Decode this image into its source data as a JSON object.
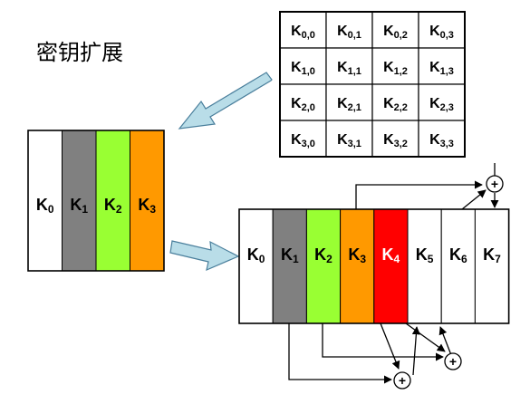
{
  "title": "密钥扩展",
  "matrix": [
    [
      [
        "K",
        "0,0"
      ],
      [
        "K",
        "0,1"
      ],
      [
        "K",
        "0,2"
      ],
      [
        "K",
        "0,3"
      ]
    ],
    [
      [
        "K",
        "1,0"
      ],
      [
        "K",
        "1,1"
      ],
      [
        "K",
        "1,2"
      ],
      [
        "K",
        "1,3"
      ]
    ],
    [
      [
        "K",
        "2,0"
      ],
      [
        "K",
        "2,1"
      ],
      [
        "K",
        "2,2"
      ],
      [
        "K",
        "2,3"
      ]
    ],
    [
      [
        "K",
        "3,0"
      ],
      [
        "K",
        "3,1"
      ],
      [
        "K",
        "3,2"
      ],
      [
        "K",
        "3,3"
      ]
    ]
  ],
  "key_words": [
    {
      "base": "K",
      "sub": "0",
      "color": "#ffffff",
      "text_color": "#000000"
    },
    {
      "base": "K",
      "sub": "1",
      "color": "#808080",
      "text_color": "#000000"
    },
    {
      "base": "K",
      "sub": "2",
      "color": "#99ff33",
      "text_color": "#000000"
    },
    {
      "base": "K",
      "sub": "3",
      "color": "#ff9900",
      "text_color": "#000000"
    }
  ],
  "expanded_words": [
    {
      "base": "K",
      "sub": "0",
      "color": "#ffffff",
      "text_color": "#000000"
    },
    {
      "base": "K",
      "sub": "1",
      "color": "#808080",
      "text_color": "#000000"
    },
    {
      "base": "K",
      "sub": "2",
      "color": "#99ff33",
      "text_color": "#000000"
    },
    {
      "base": "K",
      "sub": "3",
      "color": "#ff9900",
      "text_color": "#000000"
    },
    {
      "base": "K",
      "sub": "4",
      "color": "#ff0000",
      "text_color": "#ffffff"
    },
    {
      "base": "K",
      "sub": "5",
      "color": "#ffffff",
      "text_color": "#000000"
    },
    {
      "base": "K",
      "sub": "6",
      "color": "#ffffff",
      "text_color": "#000000"
    },
    {
      "base": "K",
      "sub": "7",
      "color": "#ffffff",
      "text_color": "#000000"
    }
  ],
  "xor_symbol": "+",
  "arrow_color": "#b9dde8",
  "arrow_edge": "#4a7f9c"
}
